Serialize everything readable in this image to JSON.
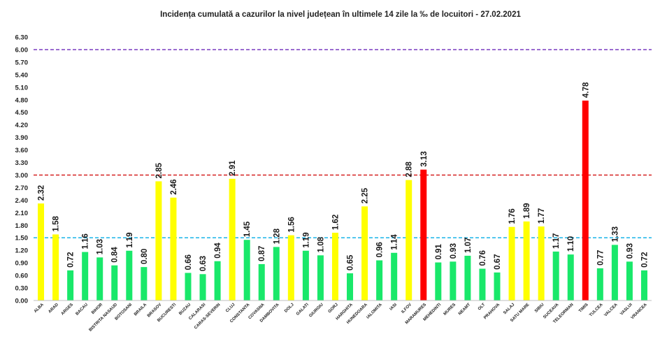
{
  "chart_data": {
    "type": "bar",
    "title": "Incidența cumulată a cazurilor la nivel județean în ultimele 14 zile la ‰ de locuitori - 27.02.2021",
    "xlabel": "",
    "ylabel": "",
    "ylim": [
      0,
      6.3
    ],
    "yticks": [
      "0.00",
      "0.30",
      "0.60",
      "0.90",
      "1.20",
      "1.50",
      "1.80",
      "2.10",
      "2.40",
      "2.70",
      "3.00",
      "3.30",
      "3.60",
      "3.90",
      "4.20",
      "4.50",
      "4.80",
      "5.10",
      "5.40",
      "5.70",
      "6.00",
      "6.30"
    ],
    "grid": false,
    "legend": "none",
    "categories": [
      "ALBA",
      "ARAD",
      "ARGES",
      "BACAU",
      "BIHOR",
      "BISTRITA NASAUD",
      "BOTOSANI",
      "BRAILA",
      "BRASOV",
      "BUCURESTI",
      "BUZAU",
      "CALARASI",
      "CARAS-SEVERIN",
      "CLUJ",
      "CONSTANTA",
      "COVASNA",
      "DAMBOVITA",
      "DOLJ",
      "GALATI",
      "GIURGIU",
      "GORJ",
      "HARGHITA",
      "HUNEDOARA",
      "IALOMITA",
      "IASI",
      "ILFOV",
      "MARAMURES",
      "MEHEDINTI",
      "MURES",
      "NEAMT",
      "OLT",
      "PRAHOVA",
      "SALAJ",
      "SATU MARE",
      "SIBIU",
      "SUCEAVA",
      "TELEORMAN",
      "TIMIS",
      "TULCEA",
      "VALCEA",
      "VASLUI",
      "VRANCEA"
    ],
    "values": [
      2.32,
      1.58,
      0.72,
      1.16,
      1.03,
      0.84,
      1.19,
      0.8,
      2.85,
      2.46,
      0.66,
      0.63,
      0.94,
      2.91,
      1.45,
      0.87,
      1.28,
      1.56,
      1.19,
      1.08,
      1.62,
      0.65,
      2.25,
      0.96,
      1.14,
      2.88,
      3.13,
      0.91,
      0.93,
      1.07,
      0.76,
      0.67,
      1.76,
      1.89,
      1.77,
      1.17,
      1.1,
      4.78,
      0.77,
      1.33,
      0.93,
      0.72
    ],
    "value_labels": [
      "2.32",
      "1.58",
      "0.72",
      "1.16",
      "1.03",
      "0.84",
      "1.19",
      "0.80",
      "2.85",
      "2.46",
      "0.66",
      "0.63",
      "0.94",
      "2.91",
      "1.45",
      "0.87",
      "1.28",
      "1.56",
      "1.19",
      "1.08",
      "1.62",
      "0.65",
      "2.25",
      "0.96",
      "1.14",
      "2.88",
      "3.13",
      "0.91",
      "0.93",
      "1.07",
      "0.76",
      "0.67",
      "1.76",
      "1.89",
      "1.77",
      "1.17",
      "1.10",
      "4.78",
      "0.77",
      "1.33",
      "0.93",
      "0.72"
    ],
    "thresholds": [
      {
        "value": 1.5,
        "color": "#1ab4e8"
      },
      {
        "value": 3.0,
        "color": "#d42020"
      },
      {
        "value": 6.0,
        "color": "#7a3cc0"
      }
    ],
    "colors": {
      "low": "#19e86a",
      "medium": "#ffff00",
      "high": "#ff0000"
    }
  }
}
